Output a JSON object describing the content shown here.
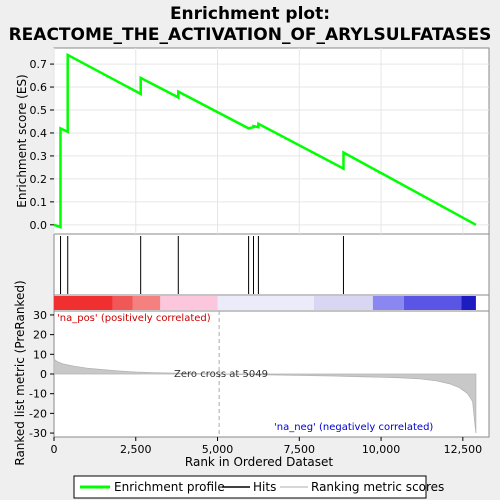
{
  "chart_data": {
    "type": "line",
    "title_line1": "Enrichment plot:",
    "title_line2": "REACTOME_THE_ACTIVATION_OF_ARYLSULFATASES",
    "es_panel": {
      "ylabel": "Enrichment score (ES)",
      "ylim": [
        -0.04,
        0.77
      ],
      "yticks": [
        0.0,
        0.1,
        0.2,
        0.3,
        0.4,
        0.5,
        0.6,
        0.7
      ],
      "ytick_labels": [
        "0.0",
        "0.1",
        "0.2",
        "0.3",
        "0.4",
        "0.5",
        "0.6",
        "0.7"
      ],
      "series_name": "Enrichment profile",
      "color": "#00ff00",
      "points": [
        [
          0,
          0.0
        ],
        [
          200,
          -0.01
        ],
        [
          200,
          0.42
        ],
        [
          420,
          0.405
        ],
        [
          420,
          0.74
        ],
        [
          2650,
          0.57
        ],
        [
          2650,
          0.64
        ],
        [
          3800,
          0.555
        ],
        [
          3800,
          0.58
        ],
        [
          5950,
          0.42
        ],
        [
          6100,
          0.425
        ],
        [
          6100,
          0.43
        ],
        [
          6250,
          0.425
        ],
        [
          6250,
          0.44
        ],
        [
          8850,
          0.245
        ],
        [
          8850,
          0.315
        ],
        [
          12900,
          0.0
        ]
      ]
    },
    "hits": {
      "name": "Hits",
      "positions": [
        200,
        420,
        2650,
        3800,
        5950,
        6100,
        6250,
        8850
      ]
    },
    "ranked_panel": {
      "ylabel": "Ranked list metric (PreRanked)",
      "xlabel": "Rank in Ordered Dataset",
      "ylim": [
        -32,
        32
      ],
      "yticks": [
        -30,
        -20,
        -10,
        0,
        10,
        20,
        30
      ],
      "ytick_labels": [
        "-30",
        "-20",
        "-10",
        "0",
        "10",
        "20",
        "30"
      ],
      "series_name": "Ranking metric scores",
      "zero_cross": 5049,
      "profile": [
        [
          0,
          7.5
        ],
        [
          100,
          6.3
        ],
        [
          300,
          5.0
        ],
        [
          600,
          4.0
        ],
        [
          1000,
          3.0
        ],
        [
          1500,
          2.2
        ],
        [
          2000,
          1.5
        ],
        [
          2500,
          1.0
        ],
        [
          3000,
          0.7
        ],
        [
          3500,
          0.5
        ],
        [
          4000,
          0.3
        ],
        [
          4500,
          0.15
        ],
        [
          5049,
          0.0
        ],
        [
          5500,
          -0.15
        ],
        [
          6500,
          -0.4
        ],
        [
          7500,
          -0.7
        ],
        [
          8500,
          -1.0
        ],
        [
          9500,
          -1.4
        ],
        [
          10500,
          -1.9
        ],
        [
          11200,
          -2.5
        ],
        [
          11700,
          -3.5
        ],
        [
          12100,
          -5.0
        ],
        [
          12400,
          -7.0
        ],
        [
          12650,
          -10.0
        ],
        [
          12800,
          -14.0
        ],
        [
          12900,
          -30.0
        ]
      ]
    },
    "xaxis": {
      "xlim": [
        0,
        13300
      ],
      "xticks": [
        0,
        2500,
        5000,
        7500,
        10000,
        12500
      ],
      "xtick_labels": [
        "0",
        "2,500",
        "5,000",
        "7,500",
        "10,000",
        "12,500"
      ]
    },
    "heatmap_bar": {
      "n_genes": 12900,
      "segments": [
        {
          "start": 0,
          "end": 1800,
          "color": "#f03030"
        },
        {
          "start": 1800,
          "end": 2400,
          "color": "#f05858"
        },
        {
          "start": 2400,
          "end": 3250,
          "color": "#f48080"
        },
        {
          "start": 3250,
          "end": 5000,
          "color": "#fcc6dc"
        },
        {
          "start": 5000,
          "end": 7950,
          "color": "#ecebfa"
        },
        {
          "start": 7950,
          "end": 9750,
          "color": "#d8d6f2"
        },
        {
          "start": 9750,
          "end": 10700,
          "color": "#8a88f0"
        },
        {
          "start": 10700,
          "end": 12450,
          "color": "#5a55e4"
        },
        {
          "start": 12450,
          "end": 12900,
          "color": "#1c1cc0"
        }
      ]
    },
    "annotations": {
      "pos_label": "'na_pos' (positively correlated)",
      "neg_label": "'na_neg' (negatively correlated)",
      "zero_label": "Zero cross at 5049",
      "pos_color": "#cc0000",
      "neg_color": "#0000cc"
    },
    "legend": {
      "items": [
        "Enrichment profile",
        "Hits",
        "Ranking metric scores"
      ]
    }
  }
}
